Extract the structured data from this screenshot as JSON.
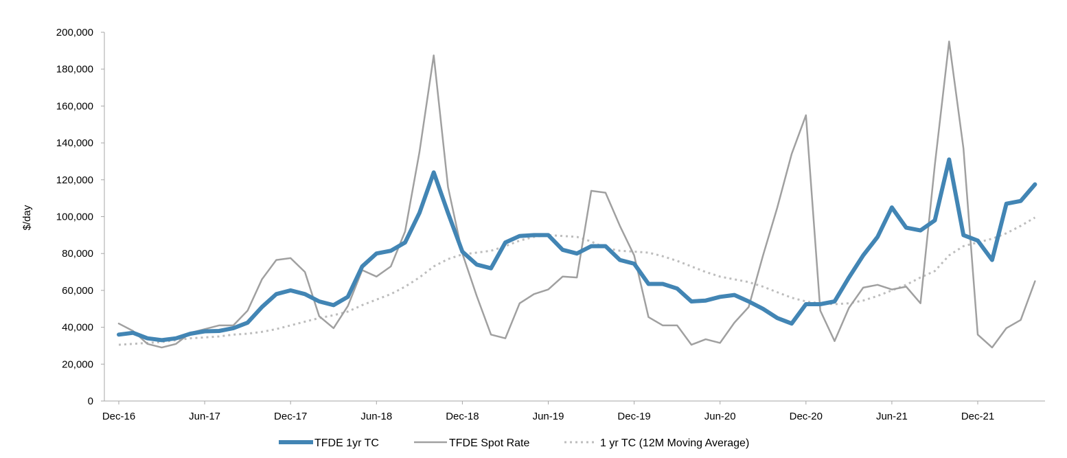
{
  "chart_data": {
    "type": "line",
    "title": "",
    "xlabel": "",
    "ylabel": "$/day",
    "ylim": [
      0,
      200000
    ],
    "yticks": [
      "0",
      "20,000",
      "40,000",
      "60,000",
      "80,000",
      "100,000",
      "120,000",
      "140,000",
      "160,000",
      "180,000",
      "200,000"
    ],
    "ytick_values": [
      0,
      20000,
      40000,
      60000,
      80000,
      100000,
      120000,
      140000,
      160000,
      180000,
      200000
    ],
    "xticks": [
      {
        "label": "Dec-16",
        "index": 0
      },
      {
        "label": "Jun-17",
        "index": 6
      },
      {
        "label": "Dec-17",
        "index": 12
      },
      {
        "label": "Jun-18",
        "index": 18
      },
      {
        "label": "Dec-18",
        "index": 24
      },
      {
        "label": "Jun-19",
        "index": 30
      },
      {
        "label": "Dec-19",
        "index": 36
      },
      {
        "label": "Jun-20",
        "index": 42
      },
      {
        "label": "Dec-20",
        "index": 48
      },
      {
        "label": "Jun-21",
        "index": 54
      },
      {
        "label": "Dec-21",
        "index": 60
      }
    ],
    "grid": false,
    "legend_position": "bottom-center",
    "series": [
      {
        "name": "TFDE 1yr TC",
        "color": "#4285b4",
        "style": "thick",
        "values": [
          36000,
          37000,
          34000,
          33000,
          34000,
          36500,
          37800,
          38000,
          39500,
          42500,
          51000,
          58000,
          60000,
          58000,
          54000,
          52000,
          56500,
          73000,
          80000,
          81500,
          86000,
          102000,
          124000,
          102000,
          81000,
          74000,
          72000,
          86000,
          89500,
          90000,
          90000,
          82000,
          80000,
          84000,
          84000,
          76500,
          74500,
          63500,
          63500,
          61000,
          54000,
          54500,
          56500,
          57500,
          54000,
          50000,
          45000,
          42000,
          52500,
          52500,
          54000,
          67000,
          79000,
          89000,
          105000,
          94000,
          92500,
          98000,
          131000,
          90000,
          87000,
          76500,
          107000,
          108500,
          117500
        ]
      },
      {
        "name": "TFDE Spot Rate",
        "color": "#a0a0a0",
        "style": "solid",
        "values": [
          42000,
          38000,
          31000,
          29000,
          31000,
          37000,
          39000,
          41000,
          41000,
          49000,
          66000,
          76500,
          77500,
          70000,
          46000,
          39500,
          51500,
          71000,
          67500,
          73000,
          92000,
          135000,
          187500,
          116000,
          80000,
          57000,
          36000,
          34000,
          53000,
          58000,
          60500,
          67500,
          67000,
          114000,
          113000,
          95000,
          79000,
          45500,
          41000,
          41000,
          30500,
          33500,
          31500,
          42500,
          51000,
          79000,
          105000,
          134000,
          155000,
          49000,
          32500,
          50500,
          61500,
          63000,
          60500,
          62000,
          53000,
          128000,
          195000,
          137000,
          36000,
          29000,
          39500,
          44000,
          65000
        ]
      },
      {
        "name": "1 yr TC (12M Moving Average)",
        "color": "#bdbdbd",
        "style": "dotted",
        "values": [
          30500,
          31000,
          31500,
          32000,
          33000,
          34000,
          34500,
          35000,
          36000,
          36500,
          37500,
          39000,
          41000,
          43000,
          45000,
          46500,
          48500,
          52000,
          55000,
          58000,
          62000,
          67000,
          73000,
          77000,
          79500,
          80500,
          81500,
          84000,
          87000,
          89000,
          90000,
          89500,
          89000,
          86500,
          83000,
          81500,
          81000,
          80500,
          78500,
          76000,
          73000,
          70000,
          67500,
          66000,
          64500,
          62000,
          59000,
          56000,
          54000,
          53000,
          52500,
          53000,
          54500,
          57000,
          60000,
          63000,
          67000,
          70500,
          79000,
          84000,
          86000,
          88000,
          91000,
          95000,
          99500
        ]
      }
    ]
  }
}
